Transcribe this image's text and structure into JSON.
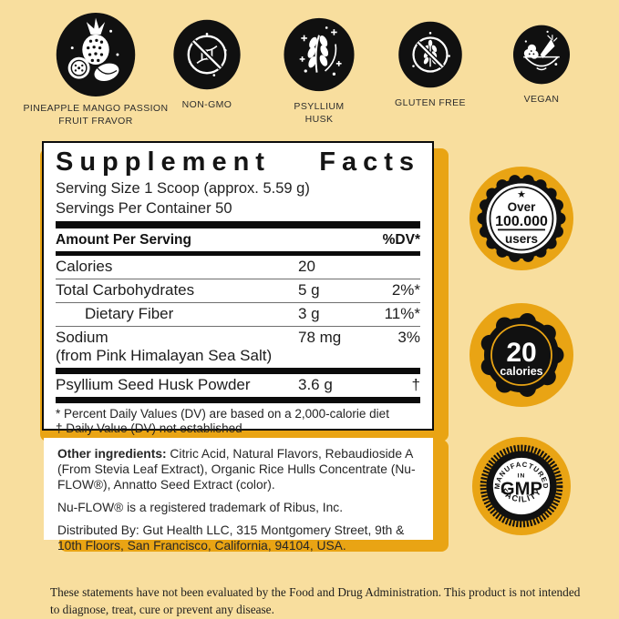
{
  "colors": {
    "background": "#F8DE9E",
    "gold": "#E9A414",
    "ink": "#0b0b0b",
    "panel": "#ffffff"
  },
  "feature_icons": [
    {
      "icon": "fruits-icon",
      "label": "PINEAPPLE MANGO PASSION FRUIT FRAVOR"
    },
    {
      "icon": "non-gmo-icon",
      "label": "NON-GMO"
    },
    {
      "icon": "psyllium-husk-icon",
      "label": "PSYLLIUM HUSK"
    },
    {
      "icon": "gluten-free-icon",
      "label": "GLUTEN FREE"
    },
    {
      "icon": "vegan-icon",
      "label": "VEGAN"
    }
  ],
  "supplement_facts": {
    "title_word1": "Supplement",
    "title_word2": "Facts",
    "serving_size": "Serving Size 1 Scoop (approx. 5.59 g)",
    "servings_per_container": "Servings Per Container 50",
    "header": {
      "amount_label": "Amount Per Serving",
      "dv_label": "%DV*"
    },
    "rows": [
      {
        "name": "Calories",
        "amount": "20",
        "dv": ""
      },
      {
        "name": "Total Carbohydrates",
        "amount": "5 g",
        "dv": "2%*"
      },
      {
        "name": "Dietary Fiber",
        "amount": "3 g",
        "dv": "11%*"
      },
      {
        "name": "Sodium",
        "name2": "(from Pink Himalayan Sea Salt)",
        "amount": "78 mg",
        "dv": "3%"
      }
    ],
    "ingredient_row": {
      "name": "Psyllium Seed Husk Powder",
      "amount": "3.6 g",
      "dv": "†"
    },
    "footnotes": [
      "* Percent Daily Values (DV) are based on a 2,000-calorie diet",
      "† Daily Value (DV) not established"
    ]
  },
  "badges": [
    {
      "star": "★",
      "line1": "Over",
      "line2": "100.000",
      "line3": "users"
    },
    {
      "value": "20",
      "unit": "calories"
    },
    {
      "arc_top": "MANUFACTURED",
      "mid": "IN",
      "main": "GMP",
      "arc_bottom": "FACILITY"
    }
  ],
  "other_info": {
    "ingredients_bold": "Other ingredients:",
    "ingredients_rest": " Citric Acid, Natural Flavors, Rebaudioside A (From Stevia Leaf Extract), Organic Rice Hulls Concentrate (Nu-FLOW®), Annatto Seed Extract (color).",
    "trademark": "Nu-FLOW® is a registered trademark of Ribus, Inc.",
    "distributed": "Distributed By: Gut Health LLC, 315 Montgomery Street, 9th & 10th Floors, San Francisco, California, 94104, USA."
  },
  "disclaimer": "These statements have not been evaluated by the Food and Drug Administration. This product is not intended to diagnose, treat, cure or prevent any disease."
}
